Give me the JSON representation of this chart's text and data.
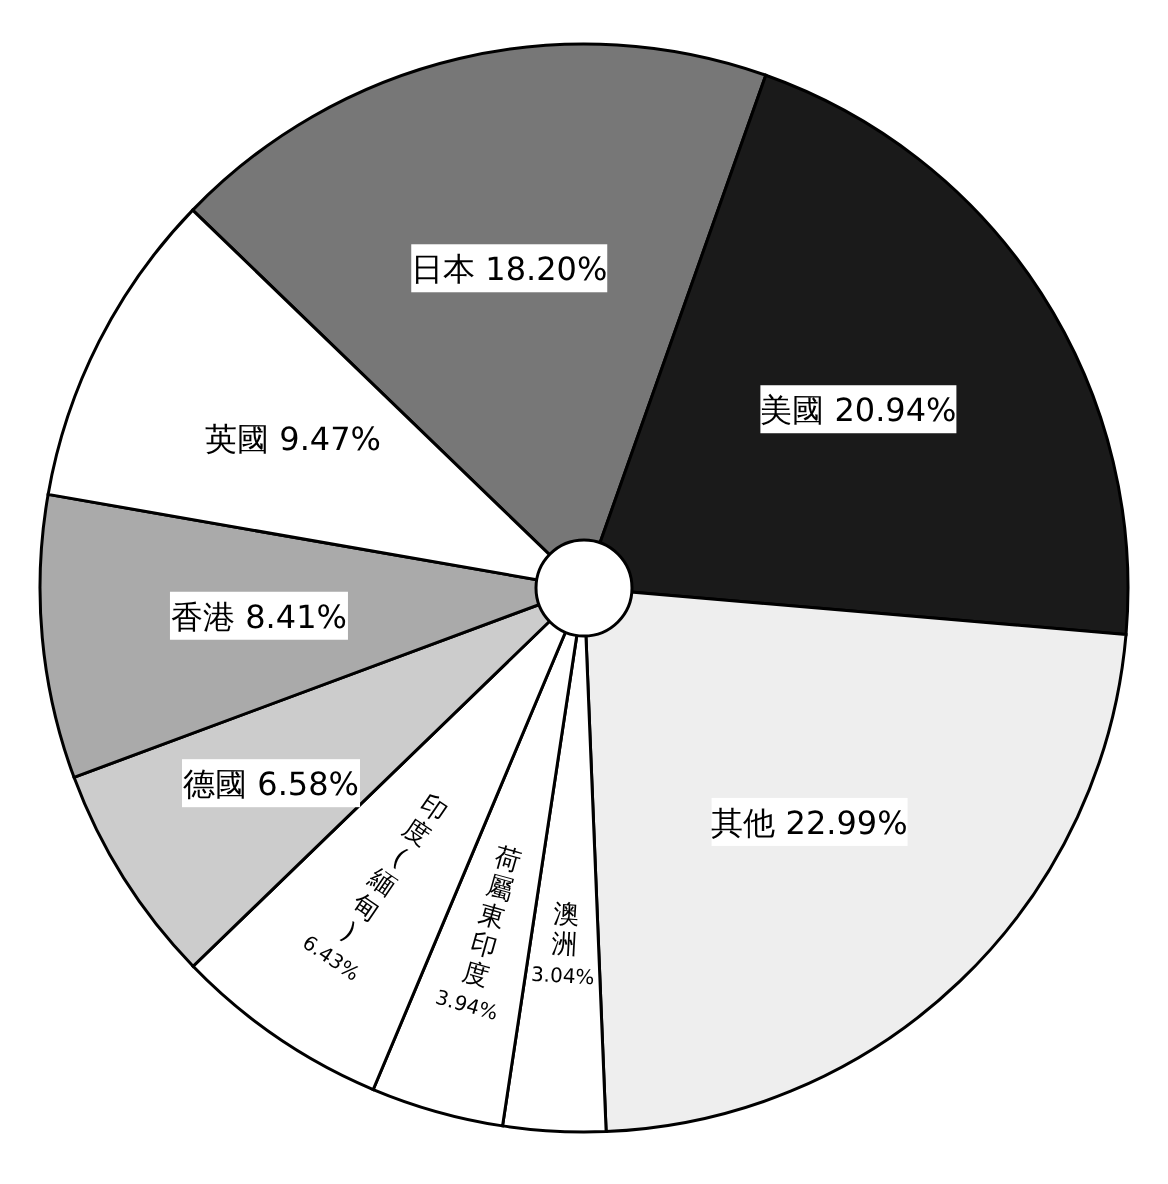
{
  "chart_data": {
    "type": "pie",
    "categories": [
      "日本",
      "美國",
      "其他",
      "澳洲",
      "荷屬東印度",
      "印度(緬甸)",
      "德國",
      "香港",
      "英國"
    ],
    "values": [
      18.2,
      20.94,
      22.99,
      3.04,
      3.94,
      6.43,
      6.58,
      8.41,
      9.47
    ],
    "colors": [
      "#777777",
      "#1a1a1a",
      "#eeeeee",
      "#ffffff",
      "#ffffff",
      "#ffffff",
      "#cccccc",
      "#aaaaaa",
      "#ffffff"
    ],
    "value_labels": [
      "18.20%",
      "20.94%",
      "22.99%",
      "3.04%",
      "3.94%",
      "6.43%",
      "6.58%",
      "8.41%",
      "9.47%"
    ]
  }
}
